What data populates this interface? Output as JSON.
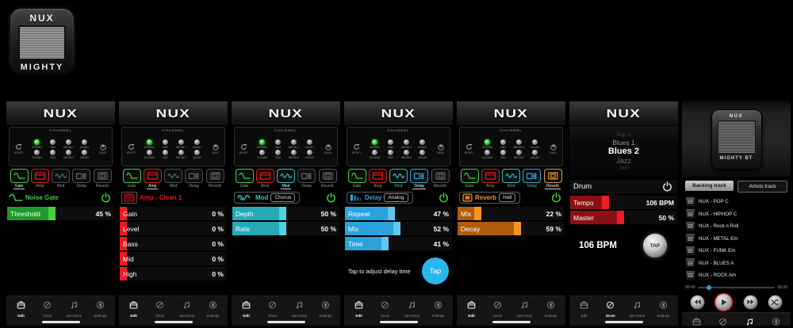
{
  "logo": "NUX",
  "app_icon": {
    "brand": "NUX",
    "label": "MIGHTY"
  },
  "colors": {
    "gate_green": "#3fd13f",
    "amp_red": "#ed1c24",
    "mod_teal": "#2ec6c6",
    "delay_blue": "#29a9e1",
    "reverb_orange": "#f7941e",
    "drum_red": "#ed1c24",
    "power_green": "#39d23c",
    "tap_blue": "#29b6ea",
    "progress_blue": "#2a9fe0"
  },
  "channel": {
    "title": "CHANNEL",
    "reset": "RESET",
    "save": "SAVE",
    "knobs_top": [
      "CLEAN1",
      "OD1",
      "METAL1",
      "LEAD1"
    ],
    "knobs_bottom": [
      "CLEAN2",
      "OD2",
      "METAL2",
      "LEAD2"
    ]
  },
  "tabs": [
    {
      "label": "Gate",
      "icon": "gate",
      "color": "#3fd13f"
    },
    {
      "label": "Amp",
      "icon": "amp",
      "color": "#e8151c"
    },
    {
      "label": "Mod",
      "icon": "mod",
      "color": "#2ec6c6"
    },
    {
      "label": "Delay",
      "icon": "delay",
      "color": "#29a9e1"
    },
    {
      "label": "Reverb",
      "icon": "reverb",
      "color": "#f7941e"
    }
  ],
  "nav": {
    "items": [
      {
        "label": "Edit",
        "kind": "edit",
        "icon": "amp-edit-icon"
      },
      {
        "label": "Drum",
        "kind": "drum",
        "icon": "drum-icon"
      },
      {
        "label": "JamTrack",
        "kind": "note",
        "icon": "music-note-icon"
      },
      {
        "label": "Settings",
        "kind": "bluetooth",
        "icon": "bluetooth-icon"
      }
    ]
  },
  "screens": [
    {
      "type": "effect",
      "id": "gate",
      "nav_active": "Edit",
      "active_tab": 0,
      "tabs_on": [
        0,
        1
      ],
      "effect": {
        "icon": "gate",
        "name": "Noise Gate",
        "color": "#3fd13f",
        "power": true,
        "boxed": false
      },
      "fill": "#1f9929",
      "handle": "#45cf45",
      "sliders": [
        {
          "label": "Threshold",
          "value": "45 %",
          "pct": 45
        }
      ]
    },
    {
      "type": "effect",
      "id": "amp",
      "nav_active": "Edit",
      "active_tab": 1,
      "tabs_on": [
        0,
        1
      ],
      "effect": {
        "icon": "amp",
        "name": "Amp - Clean 1",
        "color": "#e8151c",
        "power": false,
        "icon_boxed": true
      },
      "fill": "#cc1118",
      "handle": "#f01820",
      "sliders": [
        {
          "label": "Gain",
          "value": "0 %",
          "pct": 0
        },
        {
          "label": "Level",
          "value": "0 %",
          "pct": 0
        },
        {
          "label": "Bass",
          "value": "0 %",
          "pct": 0
        },
        {
          "label": "Mid",
          "value": "0 %",
          "pct": 0
        },
        {
          "label": "High",
          "value": "0 %",
          "pct": 0
        }
      ]
    },
    {
      "type": "effect",
      "id": "mod",
      "nav_active": "Edit",
      "active_tab": 2,
      "tabs_on": [
        0,
        1,
        2
      ],
      "effect": {
        "icon": "mod",
        "name": "Mod",
        "pill": "Chorus",
        "color": "#2ec6c6",
        "power": true,
        "boxed": true
      },
      "fill": "#26a9b6",
      "handle": "#4ed2de",
      "sliders": [
        {
          "label": "Depth",
          "value": "50 %",
          "pct": 50
        },
        {
          "label": "Rate",
          "value": "50 %",
          "pct": 50
        }
      ]
    },
    {
      "type": "effect",
      "id": "delay",
      "nav_active": "Edit",
      "active_tab": 3,
      "tabs_on": [
        0,
        1,
        2,
        3
      ],
      "effect": {
        "icon": "delay",
        "name": "Delay",
        "pill": "Analog",
        "color": "#29a9e1",
        "power": true,
        "boxed": true
      },
      "fill": "#2aa3dc",
      "handle": "#63c6ef",
      "sliders": [
        {
          "label": "Repeat",
          "value": "47 %",
          "pct": 47
        },
        {
          "label": "Mix",
          "value": "52 %",
          "pct": 52
        },
        {
          "label": "Time",
          "value": "41 %",
          "pct": 41
        }
      ],
      "tap_hint": "Tap to adjust delay time",
      "tap_label": "Tap"
    },
    {
      "type": "effect",
      "id": "reverb",
      "nav_active": "Edit",
      "active_tab": 4,
      "tabs_on": [
        0,
        1,
        2,
        3,
        4
      ],
      "effect": {
        "icon": "reverb",
        "name": "Reverb",
        "pill": "Hall",
        "color": "#f7941e",
        "power": true,
        "boxed": true
      },
      "fill": "#b05a0a",
      "handle": "#f7941e",
      "sliders": [
        {
          "label": "Mix",
          "value": "22 %",
          "pct": 22
        },
        {
          "label": "Decay",
          "value": "59 %",
          "pct": 59
        }
      ]
    },
    {
      "type": "drum",
      "id": "drum",
      "nav_active": "Drum",
      "picker": [
        "Pop 3",
        "Blues 1",
        "Blues 2",
        "Jazz",
        "Jam"
      ],
      "picker_selected": 2,
      "title": "Drum",
      "power": true,
      "fill": "#8d1014",
      "handle": "#ed1c24",
      "sliders": [
        {
          "label": "Tempo",
          "value": "106 BPM",
          "pct": 36
        },
        {
          "label": "Master",
          "value": "50 %",
          "pct": 50
        }
      ],
      "bpm_text": "106 BPM",
      "tap_label": "TAP"
    },
    {
      "type": "jam",
      "id": "jamtrack",
      "nav_active": "JamTrack",
      "device": {
        "brand": "NUX",
        "label": "MIGHTY BT"
      },
      "tabs": [
        {
          "label": "Backing track",
          "active": true
        },
        {
          "label": "Artists track",
          "active": false
        }
      ],
      "tracks": [
        "NUX - POP C",
        "NUX - HIPHOP C",
        "NUX - Rock n Roll",
        "NUX - METAL Em",
        "NUX - FUNK Em",
        "NUX - BLUES A",
        "NUX - ROCK Am"
      ],
      "progress": {
        "elapsed": "00:00",
        "total": "00:00",
        "position_pct": 12
      },
      "transport": [
        "previous",
        "play",
        "next",
        "shuffle"
      ]
    }
  ]
}
